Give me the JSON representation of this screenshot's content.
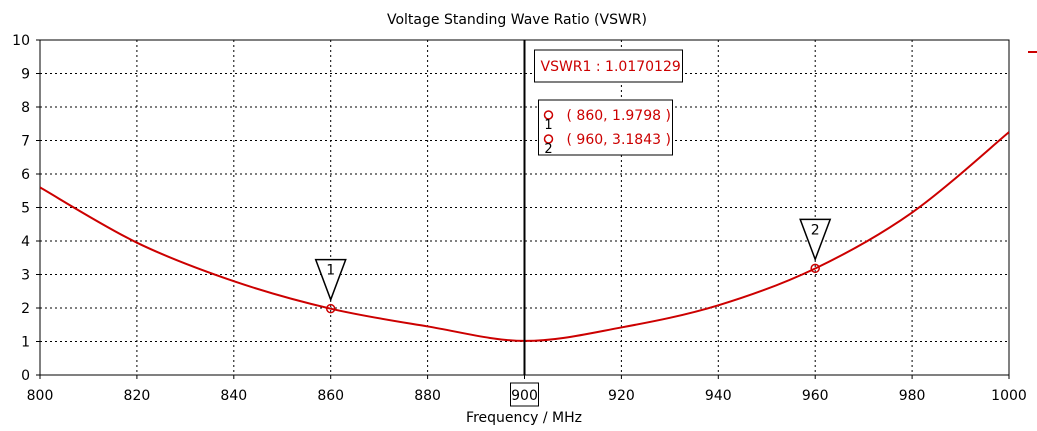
{
  "chart_data": {
    "type": "line",
    "title": "Voltage Standing Wave Ratio (VSWR)",
    "xlabel": "Frequency / MHz",
    "ylabel": "",
    "xlim": [
      800,
      1000
    ],
    "ylim": [
      0,
      10
    ],
    "x_ticks": [
      800,
      820,
      840,
      860,
      880,
      900,
      920,
      940,
      960,
      980,
      1000
    ],
    "y_ticks": [
      0,
      1,
      2,
      3,
      4,
      5,
      6,
      7,
      8,
      9,
      10
    ],
    "grid": true,
    "series": [
      {
        "name": "VSWR1",
        "color": "#cc0000",
        "x": [
          800,
          820,
          840,
          860,
          880,
          900,
          920,
          940,
          960,
          980,
          1000
        ],
        "y": [
          5.6,
          3.95,
          2.8,
          1.98,
          1.45,
          1.017,
          1.42,
          2.08,
          3.18,
          4.85,
          7.25
        ]
      }
    ],
    "cursor": {
      "x": 900,
      "label": "900",
      "readout": "VSWR1 : 1.0170129"
    },
    "markers": [
      {
        "id": "1",
        "x": 860,
        "y": 1.9798,
        "text": "( 860, 1.9798 )"
      },
      {
        "id": "2",
        "x": 960,
        "y": 3.1843,
        "text": "( 960, 3.1843 )"
      }
    ],
    "legend_swatch_color": "#cc0000"
  }
}
